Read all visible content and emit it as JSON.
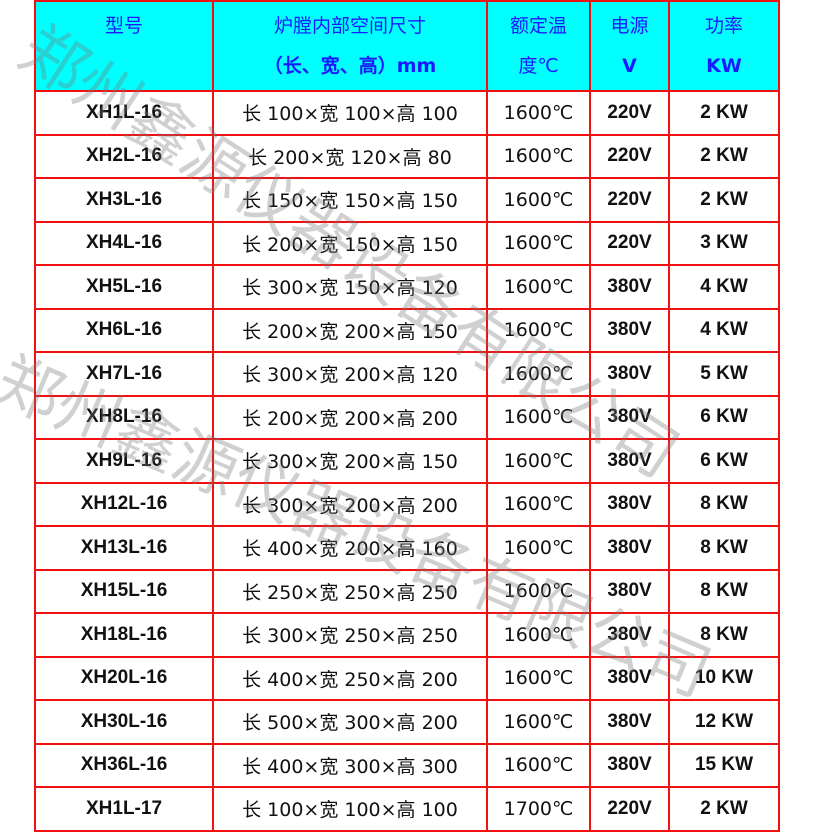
{
  "header": {
    "model": "型号",
    "size_line1": "炉膛内部空间尺寸",
    "size_line2": "（长、宽、高）mm",
    "temp_line1": "额定温",
    "temp_line2": "度℃",
    "power_line1": "电源",
    "power_line2": "V",
    "watt_line1": "功率",
    "watt_line2": "KW"
  },
  "rows": [
    [
      "XH1L-16",
      "长 100×宽 100×高 100",
      "1600℃",
      "220V",
      "2 KW"
    ],
    [
      "XH2L-16",
      "长 200×宽 120×高 80",
      "1600℃",
      "220V",
      "2 KW"
    ],
    [
      "XH3L-16",
      "长 150×宽 150×高 150",
      "1600℃",
      "220V",
      "2 KW"
    ],
    [
      "XH4L-16",
      "长 200×宽 150×高 150",
      "1600℃",
      "220V",
      "3 KW"
    ],
    [
      "XH5L-16",
      "长 300×宽 150×高 120",
      "1600℃",
      "380V",
      "4 KW"
    ],
    [
      "XH6L-16",
      "长 200×宽 200×高 150",
      "1600℃",
      "380V",
      "4 KW"
    ],
    [
      "XH7L-16",
      "长 300×宽 200×高 120",
      "1600℃",
      "380V",
      "5 KW"
    ],
    [
      "XH8L-16",
      "长 200×宽 200×高 200",
      "1600℃",
      "380V",
      "6 KW"
    ],
    [
      "XH9L-16",
      "长 300×宽 200×高 150",
      "1600℃",
      "380V",
      "6 KW"
    ],
    [
      "XH12L-16",
      "长 300×宽 200×高 200",
      "1600℃",
      "380V",
      "8 KW"
    ],
    [
      "XH13L-16",
      "长 400×宽 200×高 160",
      "1600℃",
      "380V",
      "8 KW"
    ],
    [
      "XH15L-16",
      "长 250×宽 250×高 250",
      "1600℃",
      "380V",
      "8 KW"
    ],
    [
      "XH18L-16",
      "长 300×宽 250×高 250",
      "1600℃",
      "380V",
      "8 KW"
    ],
    [
      "XH20L-16",
      "长 400×宽 250×高 200",
      "1600℃",
      "380V",
      "10 KW"
    ],
    [
      "XH30L-16",
      "长 500×宽 300×高 200",
      "1600℃",
      "380V",
      "12 KW"
    ],
    [
      "XH36L-16",
      "长 400×宽 300×高 300",
      "1600℃",
      "380V",
      "15 KW"
    ],
    [
      "XH1L-17",
      "长 100×宽 100×高 100",
      "1700℃",
      "220V",
      "2 KW"
    ]
  ],
  "watermark": "郑州鑫源仪器设备有限公司",
  "colors": {
    "header_bg": "#00ffff",
    "header_text": "#1a1aff",
    "border": "#f01010"
  }
}
